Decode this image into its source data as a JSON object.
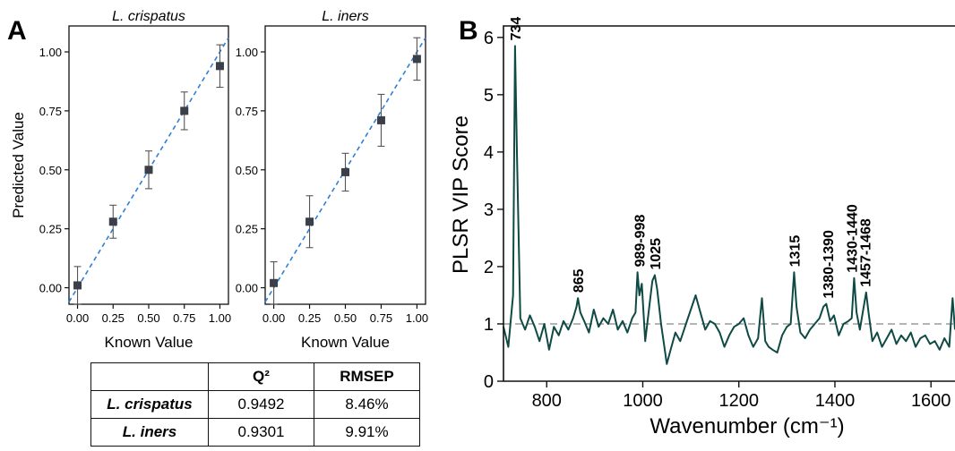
{
  "panel_labels": {
    "a": "A",
    "b": "B"
  },
  "table": {
    "header": [
      "",
      "Q²",
      "RMSEP"
    ],
    "rows": [
      {
        "name": "L. crispatus",
        "q2": "0.9492",
        "rmsep": "8.46%"
      },
      {
        "name": "L. iners",
        "q2": "0.9301",
        "rmsep": "9.91%"
      }
    ]
  },
  "chart_data": [
    {
      "id": "crispatus",
      "type": "scatter",
      "title": "L. crispatus",
      "xlabel": "Known Value",
      "ylabel": "Predicted Value",
      "xlim": [
        -0.06,
        1.06
      ],
      "ylim": [
        -0.07,
        1.11
      ],
      "xticks": [
        "0.00",
        "0.25",
        "0.50",
        "0.75",
        "1.00"
      ],
      "yticks": [
        "0.00",
        "0.25",
        "0.50",
        "0.75",
        "1.00"
      ],
      "series": [
        {
          "x": [
            0.0,
            0.25,
            0.5,
            0.75,
            1.0
          ],
          "y": [
            0.01,
            0.28,
            0.5,
            0.75,
            0.94
          ],
          "err": [
            0.08,
            0.07,
            0.08,
            0.08,
            0.09
          ]
        }
      ],
      "fit_line": {
        "style": "dashed",
        "color": "#2f7fd6"
      },
      "marker_color": "#3a3f4a"
    },
    {
      "id": "iners",
      "type": "scatter",
      "title": "L. iners",
      "xlabel": "Known Value",
      "ylabel": "",
      "xlim": [
        -0.06,
        1.06
      ],
      "ylim": [
        -0.07,
        1.11
      ],
      "xticks": [
        "0.00",
        "0.25",
        "0.50",
        "0.75",
        "1.00"
      ],
      "yticks": [
        "0.00",
        "0.25",
        "0.50",
        "0.75",
        "1.00"
      ],
      "series": [
        {
          "x": [
            0.0,
            0.25,
            0.5,
            0.75,
            1.0
          ],
          "y": [
            0.02,
            0.28,
            0.49,
            0.71,
            0.97
          ],
          "err": [
            0.09,
            0.11,
            0.08,
            0.11,
            0.09
          ]
        }
      ],
      "fit_line": {
        "style": "dashed",
        "color": "#2f7fd6"
      },
      "marker_color": "#3a3f4a"
    },
    {
      "id": "vip",
      "type": "line",
      "title": "",
      "xlabel": "Wavenumber (cm⁻¹)",
      "ylabel": "PLSR VIP Score",
      "xlim": [
        710,
        1650
      ],
      "ylim": [
        0,
        6.2
      ],
      "xticks": [
        800,
        1000,
        1200,
        1400,
        1600
      ],
      "yticks": [
        0,
        1,
        2,
        3,
        4,
        5,
        6
      ],
      "threshold": 1,
      "line_color": "#0f4a45",
      "x": [
        710,
        720,
        730,
        734,
        738,
        745,
        755,
        765,
        775,
        785,
        795,
        805,
        815,
        825,
        835,
        845,
        855,
        862,
        865,
        870,
        878,
        888,
        898,
        908,
        918,
        928,
        938,
        948,
        958,
        968,
        978,
        985,
        989,
        993,
        998,
        1005,
        1015,
        1020,
        1025,
        1030,
        1038,
        1045,
        1050,
        1058,
        1068,
        1078,
        1090,
        1100,
        1110,
        1120,
        1130,
        1140,
        1150,
        1160,
        1170,
        1180,
        1190,
        1200,
        1210,
        1220,
        1230,
        1240,
        1248,
        1255,
        1262,
        1270,
        1280,
        1290,
        1300,
        1308,
        1315,
        1320,
        1328,
        1338,
        1348,
        1358,
        1368,
        1376,
        1382,
        1390,
        1398,
        1408,
        1418,
        1428,
        1435,
        1440,
        1445,
        1452,
        1460,
        1465,
        1470,
        1478,
        1488,
        1498,
        1508,
        1518,
        1528,
        1538,
        1548,
        1558,
        1568,
        1578,
        1588,
        1598,
        1608,
        1618,
        1628,
        1638,
        1645,
        1650
      ],
      "y": [
        0.95,
        0.6,
        1.5,
        5.85,
        4.0,
        1.1,
        0.9,
        1.15,
        0.95,
        0.7,
        1.0,
        0.55,
        0.95,
        0.8,
        1.05,
        0.9,
        1.1,
        1.3,
        1.45,
        1.2,
        1.05,
        0.85,
        1.25,
        0.95,
        1.1,
        1.0,
        1.25,
        0.9,
        1.05,
        0.85,
        1.1,
        1.2,
        1.9,
        1.5,
        1.7,
        0.7,
        1.4,
        1.75,
        1.85,
        1.6,
        1.0,
        0.6,
        0.3,
        0.55,
        0.85,
        0.7,
        1.0,
        1.25,
        1.5,
        1.2,
        0.9,
        1.05,
        1.0,
        0.85,
        0.6,
        0.8,
        0.95,
        1.0,
        1.1,
        0.8,
        0.6,
        0.75,
        1.45,
        0.7,
        0.6,
        0.55,
        0.5,
        0.8,
        0.95,
        1.0,
        1.9,
        1.3,
        0.85,
        0.75,
        0.9,
        1.0,
        1.1,
        1.3,
        1.35,
        1.05,
        1.15,
        0.8,
        1.0,
        1.05,
        1.1,
        1.8,
        1.2,
        0.9,
        1.3,
        1.55,
        1.2,
        0.7,
        0.85,
        0.6,
        0.75,
        0.9,
        0.65,
        0.8,
        0.7,
        0.85,
        0.6,
        0.75,
        0.8,
        0.65,
        0.7,
        0.55,
        0.75,
        0.6,
        1.45,
        0.9
      ],
      "annotations": [
        {
          "text": "734",
          "x": 734
        },
        {
          "text": "865",
          "x": 865
        },
        {
          "text": "989-998",
          "x": 993
        },
        {
          "text": "1025",
          "x": 1025
        },
        {
          "text": "1315",
          "x": 1315
        },
        {
          "text": "1380-1390",
          "x": 1385
        },
        {
          "text": "1430-1440",
          "x": 1435
        },
        {
          "text": "1457-1468",
          "x": 1463
        }
      ]
    }
  ]
}
